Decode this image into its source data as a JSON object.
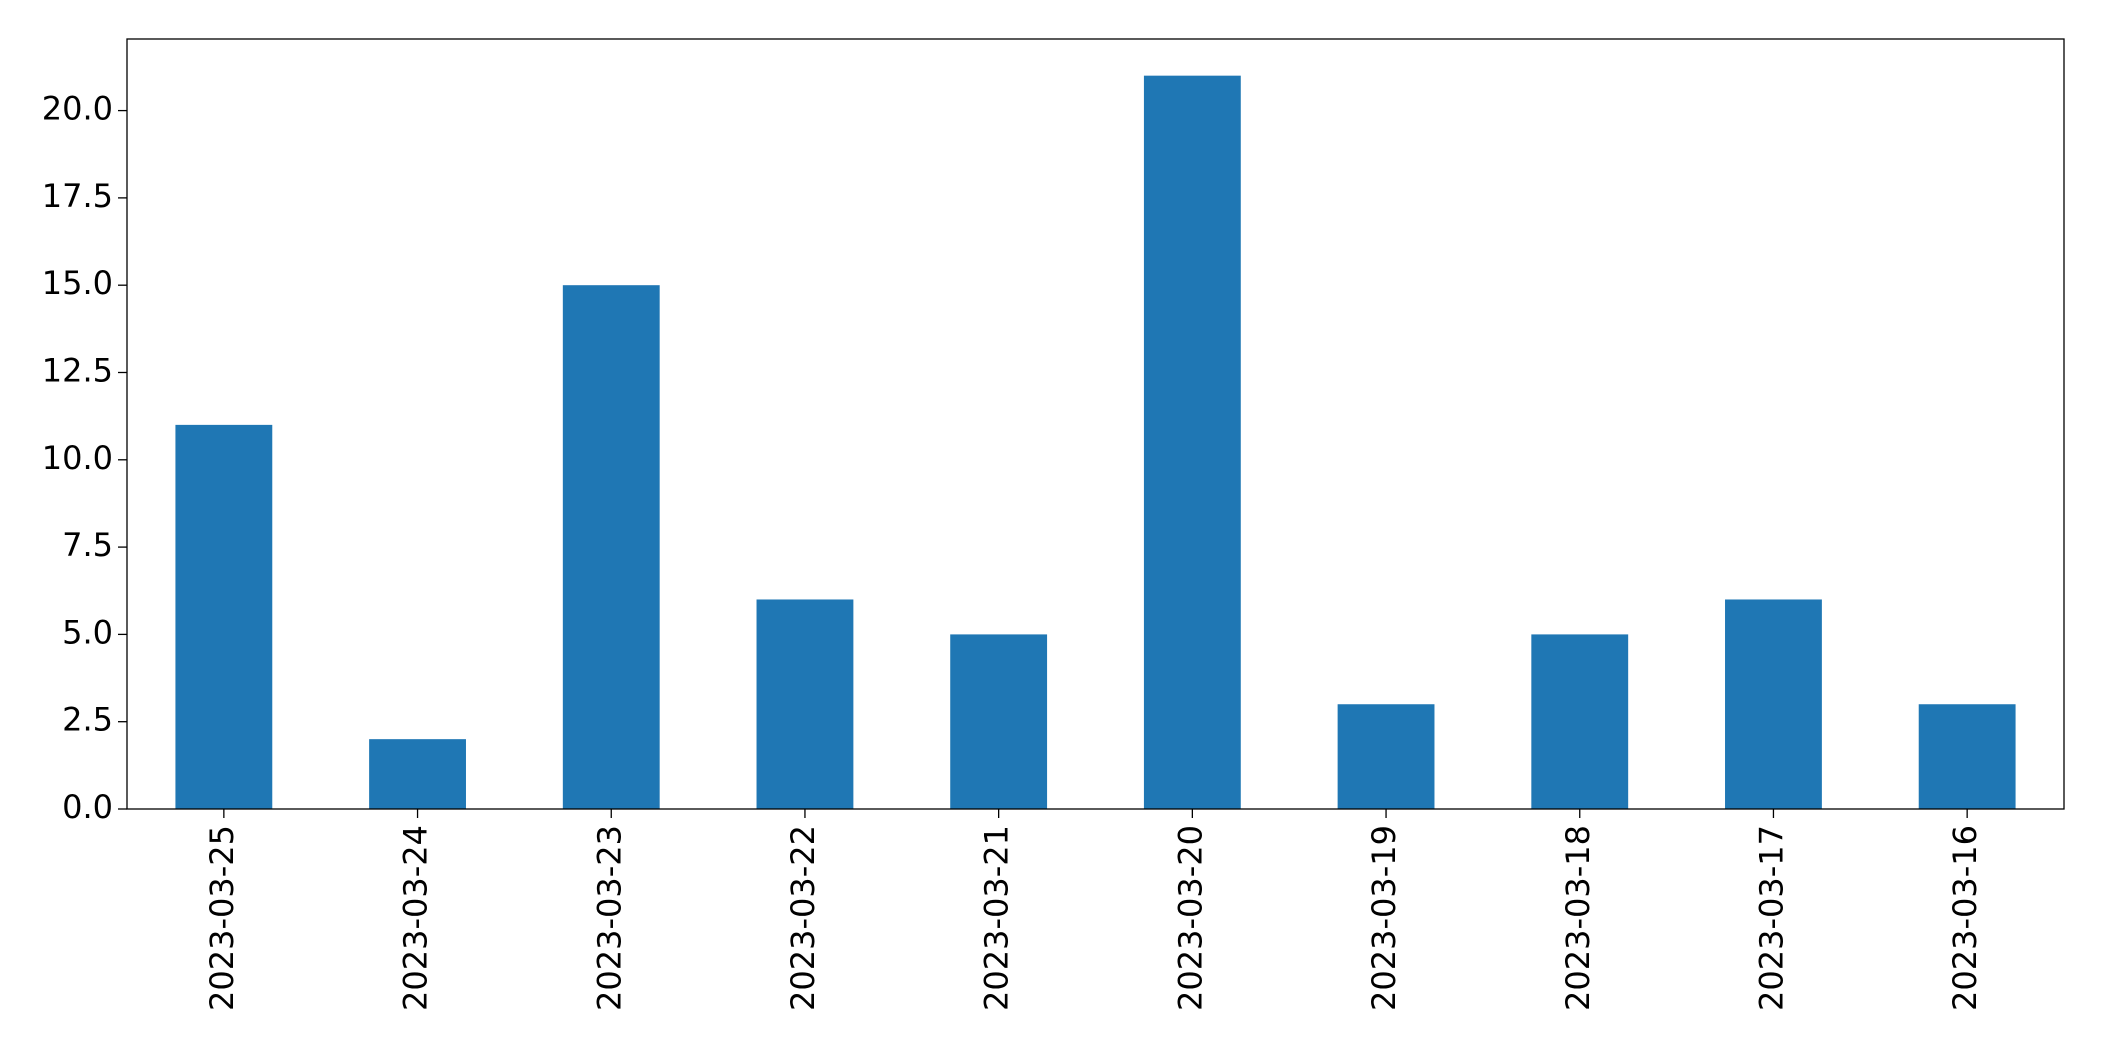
{
  "chart_data": {
    "type": "bar",
    "categories": [
      "2023-03-25",
      "2023-03-24",
      "2023-03-23",
      "2023-03-22",
      "2023-03-21",
      "2023-03-20",
      "2023-03-19",
      "2023-03-18",
      "2023-03-17",
      "2023-03-16"
    ],
    "values": [
      11,
      2,
      15,
      6,
      5,
      21,
      3,
      5,
      6,
      3
    ],
    "color": "#1f77b4",
    "ylim": [
      0,
      22.05
    ],
    "yticks": [
      {
        "value": 0,
        "label": "0.0"
      },
      {
        "value": 2.5,
        "label": "2.5"
      },
      {
        "value": 5,
        "label": "5.0"
      },
      {
        "value": 7.5,
        "label": "7.5"
      },
      {
        "value": 10,
        "label": "10.0"
      },
      {
        "value": 12.5,
        "label": "12.5"
      },
      {
        "value": 15,
        "label": "15.0"
      },
      {
        "value": 17.5,
        "label": "17.5"
      },
      {
        "value": 20,
        "label": "20.0"
      }
    ],
    "grid": false
  }
}
